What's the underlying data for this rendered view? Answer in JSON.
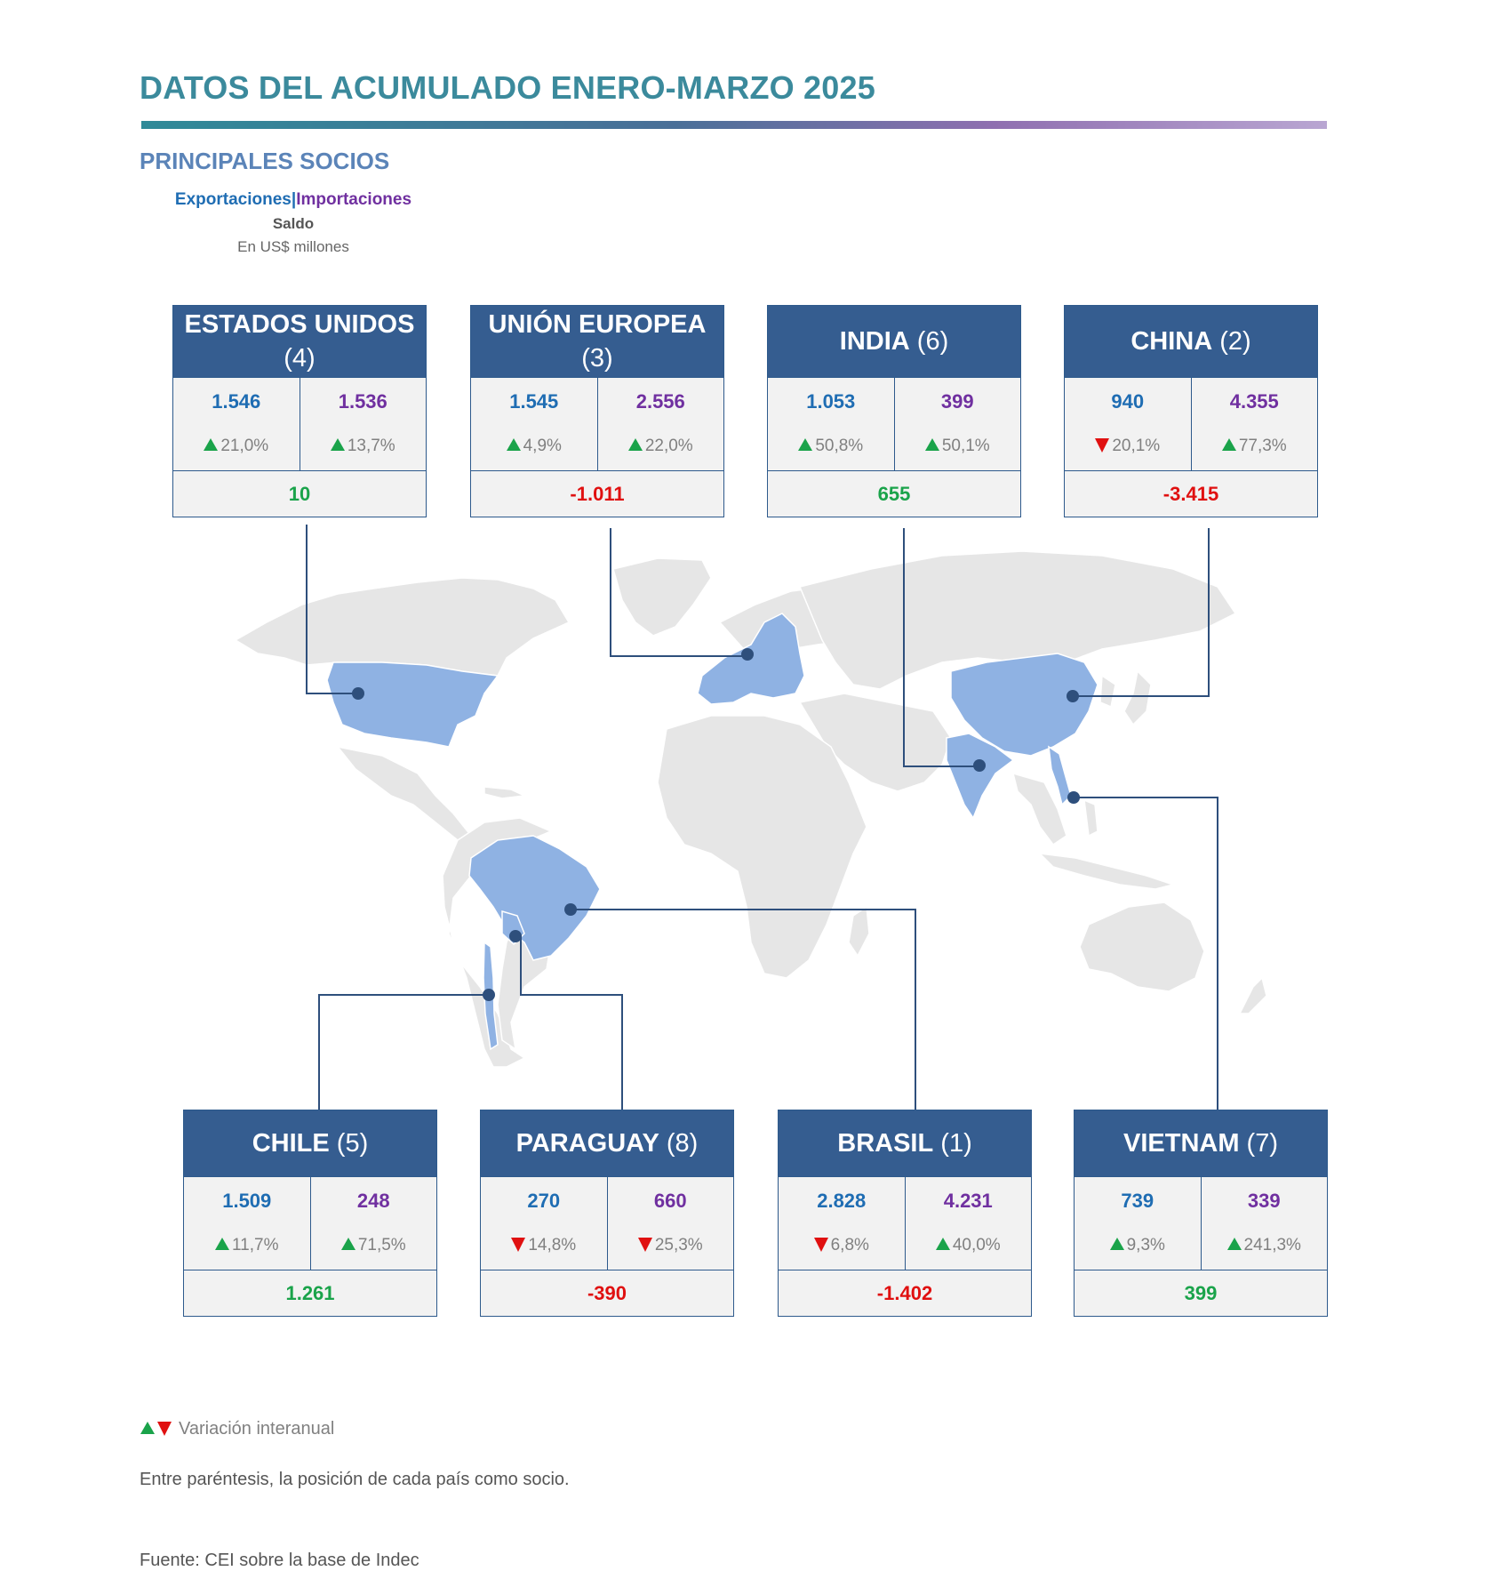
{
  "header": {
    "title": "DATOS DEL ACUMULADO ENERO-MARZO 2025",
    "subtitle": "PRINCIPALES SOCIOS"
  },
  "legend": {
    "exports_label": "Exportaciones",
    "separator": "|",
    "imports_label": "Importaciones",
    "balance_label": "Saldo",
    "units": "En US$ millones"
  },
  "colors": {
    "title": "#3b8a9c",
    "card_header": "#355d90",
    "exports": "#1f6db3",
    "imports": "#7030a0",
    "positive": "#1aa34a",
    "negative": "#e01010",
    "highlighted_country": "#8fb2e3",
    "other_country": "#e6e6e6"
  },
  "partners": {
    "usa": {
      "name": "ESTADOS UNIDOS",
      "rank": "(4)",
      "exports": "1.546",
      "imports": "1.536",
      "exports_var": "21,0%",
      "exports_dir": "up",
      "imports_var": "13,7%",
      "imports_dir": "up",
      "balance": "10",
      "balance_sign": "pos"
    },
    "eu": {
      "name": "UNIÓN EUROPEA",
      "rank": "(3)",
      "exports": "1.545",
      "imports": "2.556",
      "exports_var": "4,9%",
      "exports_dir": "up",
      "imports_var": "22,0%",
      "imports_dir": "up",
      "balance": "-1.011",
      "balance_sign": "neg"
    },
    "india": {
      "name": "INDIA",
      "rank": "(6)",
      "exports": "1.053",
      "imports": "399",
      "exports_var": "50,8%",
      "exports_dir": "up",
      "imports_var": "50,1%",
      "imports_dir": "up",
      "balance": "655",
      "balance_sign": "pos"
    },
    "china": {
      "name": "CHINA",
      "rank": "(2)",
      "exports": "940",
      "imports": "4.355",
      "exports_var": "20,1%",
      "exports_dir": "down",
      "imports_var": "77,3%",
      "imports_dir": "up",
      "balance": "-3.415",
      "balance_sign": "neg"
    },
    "chile": {
      "name": "CHILE",
      "rank": "(5)",
      "exports": "1.509",
      "imports": "248",
      "exports_var": "11,7%",
      "exports_dir": "up",
      "imports_var": "71,5%",
      "imports_dir": "up",
      "balance": "1.261",
      "balance_sign": "pos"
    },
    "paraguay": {
      "name": "PARAGUAY",
      "rank": "(8)",
      "exports": "270",
      "imports": "660",
      "exports_var": "14,8%",
      "exports_dir": "down",
      "imports_var": "25,3%",
      "imports_dir": "down",
      "balance": "-390",
      "balance_sign": "neg"
    },
    "brasil": {
      "name": "BRASIL",
      "rank": "(1)",
      "exports": "2.828",
      "imports": "4.231",
      "exports_var": "6,8%",
      "exports_dir": "down",
      "imports_var": "40,0%",
      "imports_dir": "up",
      "balance": "-1.402",
      "balance_sign": "neg"
    },
    "vietnam": {
      "name": "VIETNAM",
      "rank": "(7)",
      "exports": "739",
      "imports": "339",
      "exports_var": "9,3%",
      "exports_dir": "up",
      "imports_var": "241,3%",
      "imports_dir": "up",
      "balance": "399",
      "balance_sign": "pos"
    }
  },
  "footer": {
    "variation_legend": "Variación interanual",
    "note": "Entre paréntesis, la posición de cada país como socio.",
    "source": "Fuente: CEI sobre la base de Indec"
  }
}
